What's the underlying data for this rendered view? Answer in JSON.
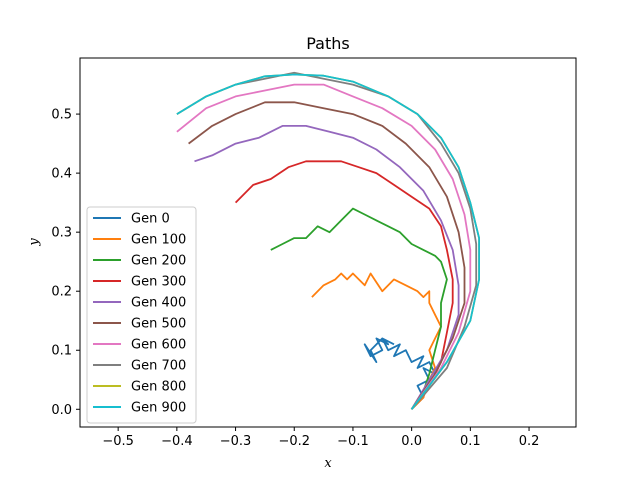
{
  "chart_data": {
    "type": "line",
    "title": "Paths",
    "xlabel": "x",
    "ylabel": "y",
    "xlim": [
      -0.565,
      0.28
    ],
    "ylim": [
      -0.03,
      0.595
    ],
    "xticks": [
      -0.5,
      -0.4,
      -0.3,
      -0.2,
      -0.1,
      0.0,
      0.1,
      0.2
    ],
    "xtick_labels": [
      "−0.5",
      "−0.4",
      "−0.3",
      "−0.2",
      "−0.1",
      "0.0",
      "0.1",
      "0.2"
    ],
    "yticks": [
      0.0,
      0.1,
      0.2,
      0.3,
      0.4,
      0.5
    ],
    "ytick_labels": [
      "0.0",
      "0.1",
      "0.2",
      "0.3",
      "0.4",
      "0.5"
    ],
    "grid": false,
    "legend_position": "lower-left",
    "series": [
      {
        "name": "Gen 0",
        "color": "#1f77b4",
        "x": [
          0.0,
          0.02,
          0.01,
          0.03,
          0.02,
          0.04,
          0.03,
          0.01,
          0.02,
          0.0,
          -0.01,
          -0.03,
          -0.02,
          -0.04,
          -0.05,
          -0.04,
          -0.06,
          -0.05,
          -0.07,
          -0.08,
          -0.06,
          -0.07,
          -0.05,
          -0.03
        ],
        "y": [
          0.0,
          0.02,
          0.04,
          0.05,
          0.07,
          0.06,
          0.08,
          0.07,
          0.09,
          0.08,
          0.1,
          0.09,
          0.11,
          0.1,
          0.12,
          0.11,
          0.12,
          0.1,
          0.09,
          0.11,
          0.08,
          0.1,
          0.12,
          0.11
        ]
      },
      {
        "name": "Gen 100",
        "color": "#ff7f0e",
        "x": [
          0.0,
          0.02,
          0.03,
          0.04,
          0.03,
          0.04,
          0.05,
          0.04,
          0.03,
          0.03,
          0.02,
          0.01,
          -0.01,
          -0.03,
          -0.05,
          -0.07,
          -0.08,
          -0.1,
          -0.11,
          -0.12,
          -0.13,
          -0.15,
          -0.16,
          -0.17
        ],
        "y": [
          0.0,
          0.02,
          0.05,
          0.07,
          0.1,
          0.12,
          0.14,
          0.16,
          0.18,
          0.2,
          0.19,
          0.2,
          0.21,
          0.22,
          0.2,
          0.23,
          0.21,
          0.23,
          0.22,
          0.23,
          0.22,
          0.21,
          0.2,
          0.19
        ]
      },
      {
        "name": "Gen 200",
        "color": "#2ca02c",
        "x": [
          0.0,
          0.02,
          0.03,
          0.04,
          0.05,
          0.05,
          0.06,
          0.05,
          0.04,
          0.02,
          0.0,
          -0.02,
          -0.04,
          -0.06,
          -0.08,
          -0.1,
          -0.12,
          -0.14,
          -0.16,
          -0.18,
          -0.2,
          -0.22,
          -0.24
        ],
        "y": [
          0.0,
          0.03,
          0.06,
          0.1,
          0.14,
          0.18,
          0.22,
          0.25,
          0.26,
          0.27,
          0.28,
          0.3,
          0.31,
          0.32,
          0.33,
          0.34,
          0.32,
          0.3,
          0.31,
          0.29,
          0.29,
          0.28,
          0.27
        ]
      },
      {
        "name": "Gen 300",
        "color": "#d62728",
        "x": [
          0.0,
          0.03,
          0.05,
          0.06,
          0.07,
          0.07,
          0.06,
          0.05,
          0.03,
          0.0,
          -0.03,
          -0.06,
          -0.09,
          -0.12,
          -0.15,
          -0.18,
          -0.21,
          -0.24,
          -0.27,
          -0.3
        ],
        "y": [
          0.0,
          0.04,
          0.08,
          0.13,
          0.18,
          0.22,
          0.27,
          0.31,
          0.34,
          0.36,
          0.38,
          0.4,
          0.41,
          0.42,
          0.42,
          0.42,
          0.41,
          0.39,
          0.38,
          0.35
        ]
      },
      {
        "name": "Gen 400",
        "color": "#9467bd",
        "x": [
          0.0,
          0.03,
          0.06,
          0.08,
          0.08,
          0.07,
          0.05,
          0.02,
          -0.02,
          -0.06,
          -0.1,
          -0.14,
          -0.18,
          -0.22,
          -0.26,
          -0.3,
          -0.34,
          -0.37
        ],
        "y": [
          0.0,
          0.05,
          0.1,
          0.16,
          0.21,
          0.27,
          0.32,
          0.37,
          0.41,
          0.44,
          0.46,
          0.47,
          0.48,
          0.48,
          0.46,
          0.45,
          0.43,
          0.42
        ]
      },
      {
        "name": "Gen 500",
        "color": "#8c564b",
        "x": [
          0.0,
          0.04,
          0.07,
          0.09,
          0.09,
          0.08,
          0.06,
          0.03,
          -0.01,
          -0.05,
          -0.1,
          -0.15,
          -0.2,
          -0.25,
          -0.3,
          -0.34,
          -0.38
        ],
        "y": [
          0.0,
          0.06,
          0.12,
          0.18,
          0.24,
          0.3,
          0.36,
          0.41,
          0.45,
          0.48,
          0.5,
          0.51,
          0.52,
          0.52,
          0.5,
          0.48,
          0.45
        ]
      },
      {
        "name": "Gen 600",
        "color": "#e377c2",
        "x": [
          0.0,
          0.05,
          0.08,
          0.1,
          0.1,
          0.09,
          0.07,
          0.04,
          0.0,
          -0.05,
          -0.1,
          -0.15,
          -0.2,
          -0.25,
          -0.3,
          -0.35,
          -0.4
        ],
        "y": [
          0.0,
          0.07,
          0.13,
          0.2,
          0.27,
          0.33,
          0.39,
          0.44,
          0.48,
          0.51,
          0.53,
          0.55,
          0.55,
          0.54,
          0.53,
          0.51,
          0.47
        ]
      },
      {
        "name": "Gen 700",
        "color": "#7f7f7f",
        "x": [
          0.0,
          0.06,
          0.09,
          0.11,
          0.11,
          0.1,
          0.08,
          0.05,
          0.01,
          -0.04,
          -0.1,
          -0.15,
          -0.2,
          -0.25,
          -0.3,
          -0.35,
          -0.4
        ],
        "y": [
          0.0,
          0.07,
          0.14,
          0.21,
          0.28,
          0.34,
          0.4,
          0.45,
          0.5,
          0.53,
          0.55,
          0.56,
          0.57,
          0.56,
          0.55,
          0.53,
          0.5
        ]
      },
      {
        "name": "Gen 800",
        "color": "#bcbd22",
        "x": [
          0.0,
          0.06,
          0.1,
          0.115,
          0.115,
          0.1,
          0.08,
          0.05,
          0.01,
          -0.04,
          -0.1,
          -0.15,
          -0.2,
          -0.25,
          -0.3,
          -0.35,
          -0.4
        ],
        "y": [
          0.0,
          0.08,
          0.15,
          0.22,
          0.29,
          0.35,
          0.41,
          0.46,
          0.5,
          0.53,
          0.555,
          0.565,
          0.567,
          0.564,
          0.55,
          0.53,
          0.5
        ]
      },
      {
        "name": "Gen 900",
        "color": "#17becf",
        "x": [
          0.0,
          0.06,
          0.1,
          0.115,
          0.115,
          0.1,
          0.08,
          0.05,
          0.01,
          -0.04,
          -0.1,
          -0.15,
          -0.2,
          -0.25,
          -0.3,
          -0.35,
          -0.4
        ],
        "y": [
          0.0,
          0.08,
          0.15,
          0.22,
          0.29,
          0.35,
          0.41,
          0.46,
          0.5,
          0.53,
          0.555,
          0.565,
          0.567,
          0.564,
          0.55,
          0.53,
          0.5
        ]
      }
    ]
  }
}
